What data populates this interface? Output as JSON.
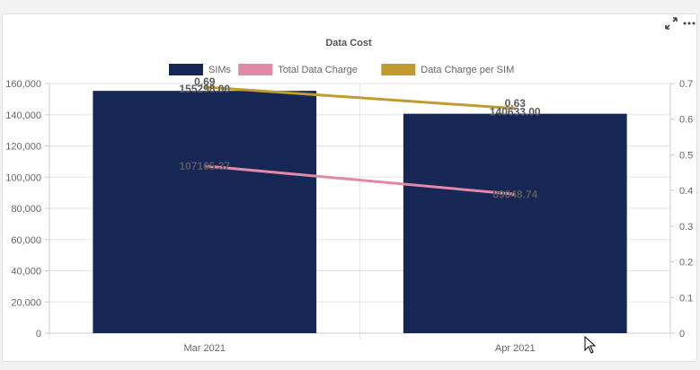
{
  "chart_data": {
    "type": "bar",
    "title": "Data Cost",
    "categories": [
      "Mar 2021",
      "Apr 2021"
    ],
    "series": [
      {
        "name": "SIMs",
        "type": "bar",
        "axis": "left",
        "color": "#162655",
        "values": [
          155298.0,
          140633.0
        ],
        "labels": [
          "155298.00",
          "140633.00"
        ]
      },
      {
        "name": "Total Data Charge",
        "type": "line",
        "axis": "left",
        "color": "#e08aa8",
        "values": [
          107165.37,
          89048.74
        ],
        "labels": [
          "107165.37",
          "89048.74"
        ]
      },
      {
        "name": "Data Charge per SIM",
        "type": "line",
        "axis": "right",
        "color": "#c09c30",
        "values": [
          0.69,
          0.63
        ],
        "labels": [
          "0.69",
          "0.63"
        ]
      }
    ],
    "y_left": {
      "range": [
        0,
        160000
      ],
      "ticks": [
        "0",
        "20,000",
        "40,000",
        "60,000",
        "80,000",
        "100,000",
        "120,000",
        "140,000",
        "160,000"
      ]
    },
    "y_right": {
      "range": [
        0,
        0.7
      ],
      "ticks": [
        "0",
        "0.1",
        "0.2",
        "0.3",
        "0.4",
        "0.5",
        "0.6",
        "0.7"
      ]
    },
    "legend_position": "top",
    "grid": true
  },
  "toolbar": {
    "icons": [
      "expand-icon",
      "more-icon"
    ]
  }
}
